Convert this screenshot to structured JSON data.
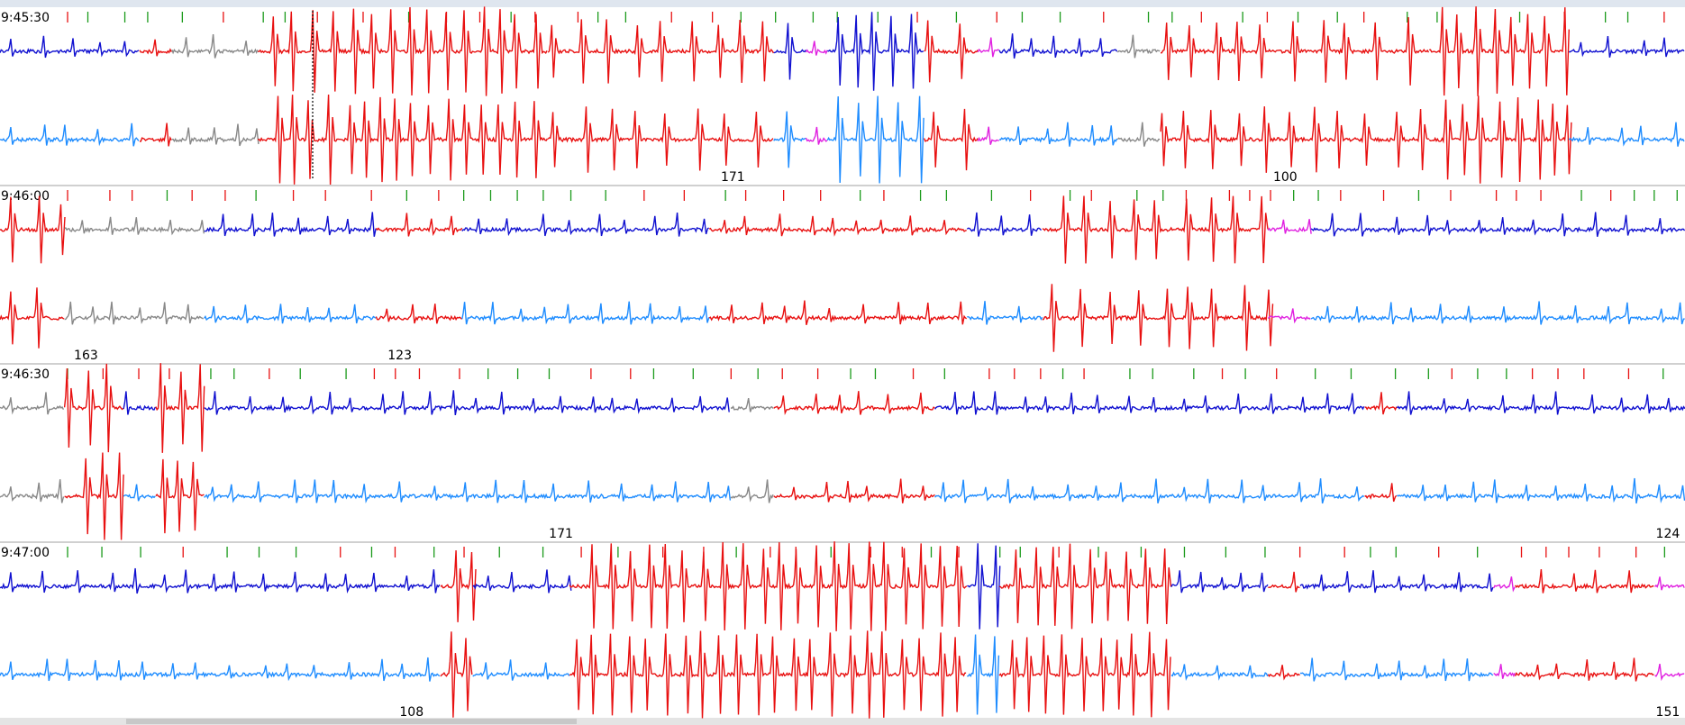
{
  "strips": [
    {
      "time": "9:45:30",
      "labels": [
        "171",
        "100"
      ]
    },
    {
      "time": "9:46:00",
      "labels": [
        "163",
        "123"
      ]
    },
    {
      "time": "9:46:30",
      "labels": [
        "171",
        "124"
      ]
    },
    {
      "time": "9:47:00",
      "labels": [
        "108",
        "151"
      ]
    }
  ]
}
